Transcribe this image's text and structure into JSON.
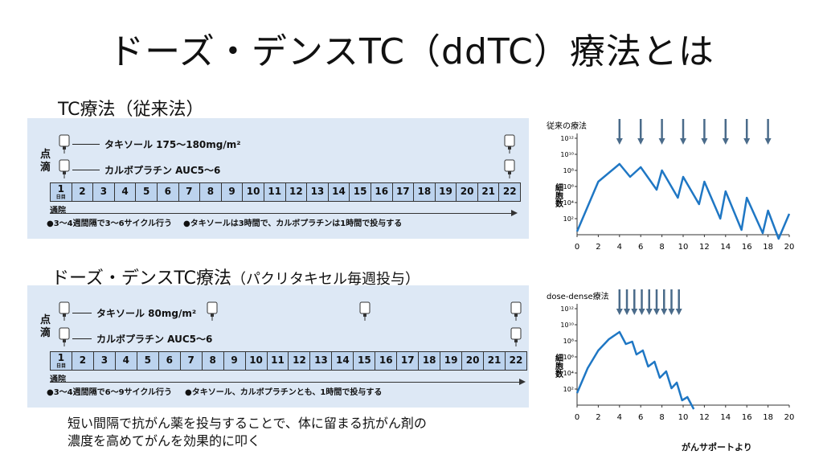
{
  "title": "ドーズ・デンスTC（ddTC）療法とは",
  "section1": {
    "heading": "TC療法（従来法）",
    "drip_label": "点滴",
    "drug1": "タキソール 175～180mg/m²",
    "drug2": "カルボプラチン AUC5～6",
    "day1_sub": "日目",
    "outpatient": "通院",
    "note1": "●3～4週間隔で3～6サイクル行う",
    "note2": "●タキソールは3時間で、カルボプラチンは1時間で投与する"
  },
  "section2": {
    "heading": "ドーズ・デンスTC療法",
    "heading_sub": "（パクリタキセル毎週投与）",
    "drip_label": "点滴",
    "drug1": "タキソール 80mg/m²",
    "drug2": "カルボプラチン AUC5～6",
    "day1_sub": "日目",
    "outpatient": "通院",
    "note1": "●3～4週間隔で6～9サイクル行う",
    "note2": "●タキソール、カルボプラチンとも、1時間で投与する"
  },
  "days": [
    "1",
    "2",
    "3",
    "4",
    "5",
    "6",
    "7",
    "8",
    "9",
    "10",
    "11",
    "12",
    "13",
    "14",
    "15",
    "16",
    "17",
    "18",
    "19",
    "20",
    "21",
    "22"
  ],
  "description_line1": "短い間隔で抗がん薬を投与することで、体に留まる抗がん剤の",
  "description_line2": "濃度を高めてがんを効果的に叩く",
  "source": "がんサポートより",
  "colors": {
    "line": "#1f77c4",
    "arrow": "#4a6b8a",
    "panel": "#dde8f5",
    "dayrow": "#bcd3ee"
  },
  "chart_data": [
    {
      "type": "line",
      "title": "従来の療法",
      "ylabel": "細胞数",
      "xlim": [
        0,
        20
      ],
      "x_ticks": [
        "0",
        "2",
        "4",
        "6",
        "8",
        "10",
        "12",
        "14",
        "16",
        "18",
        "20"
      ],
      "y_scale": "log",
      "y_ticks": [
        "10²",
        "10⁴",
        "10⁶",
        "10⁸",
        "10¹⁰",
        "10¹²"
      ],
      "arrows_at": [
        4,
        6,
        8,
        10,
        12,
        14,
        16,
        18
      ],
      "series": [
        {
          "x": [
            0,
            2,
            4,
            5,
            6,
            7.5,
            8,
            9.5,
            10,
            11.5,
            12,
            13.5,
            14,
            15.5,
            16,
            17.5,
            18,
            19,
            20
          ],
          "y": [
            0.4,
            6.6,
            8.8,
            7.2,
            8.4,
            5.6,
            8.0,
            4.6,
            7.2,
            3.8,
            6.6,
            2.0,
            5.4,
            0.6,
            4.6,
            0.2,
            3.0,
            -0.6,
            2.6
          ]
        }
      ]
    },
    {
      "type": "line",
      "title": "dose-dense療法",
      "ylabel": "細胞数",
      "xlim": [
        0,
        20
      ],
      "x_ticks": [
        "0",
        "2",
        "4",
        "6",
        "8",
        "10",
        "12",
        "14",
        "16",
        "18",
        "20"
      ],
      "y_scale": "log",
      "y_ticks": [
        "10²",
        "10⁴",
        "10⁶",
        "10⁸",
        "10¹⁰",
        "10¹²"
      ],
      "arrows_at": [
        4,
        4.7,
        5.4,
        6.1,
        6.8,
        7.5,
        8.2,
        8.9,
        9.6
      ],
      "series": [
        {
          "x": [
            0,
            1,
            2,
            3,
            4,
            4.6,
            5.2,
            5.6,
            6.2,
            6.7,
            7.3,
            7.8,
            8.4,
            8.9,
            9.4,
            9.9,
            10.4,
            11
          ],
          "y": [
            1.5,
            4.6,
            6.8,
            8.2,
            9.1,
            7.6,
            7.9,
            6.3,
            6.8,
            4.8,
            5.4,
            3.4,
            4.2,
            2.1,
            2.8,
            0.6,
            1.0,
            -2.0
          ]
        }
      ]
    }
  ]
}
